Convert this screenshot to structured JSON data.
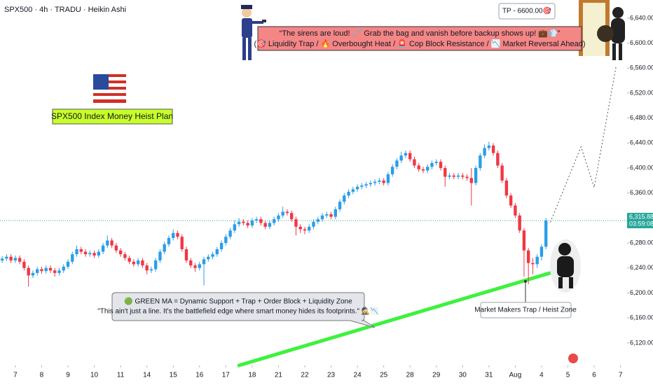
{
  "header": "SPX500 · 4h · TRADU · Heikin Ashi",
  "chart_data": {
    "type": "candlestick",
    "title": "SPX500 Index Money Heist Plan",
    "open": [
      6252,
      6255,
      6258,
      6252,
      6256,
      6250,
      6240,
      6228,
      6232,
      6238,
      6235,
      6240,
      6236,
      6232,
      6236,
      6242,
      6250,
      6262,
      6270,
      6266,
      6262,
      6264,
      6260,
      6266,
      6276,
      6284,
      6276,
      6268,
      6262,
      6256,
      6250,
      6246,
      6252,
      6244,
      6236,
      6238,
      6252,
      6266,
      6278,
      6288,
      6296,
      6290,
      6270,
      6252,
      6244,
      6240,
      6246,
      6254,
      6258,
      6262,
      6270,
      6280,
      6290,
      6300,
      6310,
      6314,
      6312,
      6308,
      6316,
      6318,
      6312,
      6306,
      6312,
      6318,
      6324,
      6330,
      6328,
      6318,
      6306,
      6302,
      6300,
      6306,
      6314,
      6318,
      6324,
      6326,
      6322,
      6334,
      6346,
      6356,
      6362,
      6366,
      6370,
      6372,
      6374,
      6376,
      6378,
      6380,
      6376,
      6390,
      6402,
      6412,
      6420,
      6424,
      6414,
      6404,
      6398,
      6396,
      6402,
      6408,
      6410,
      6400,
      6386,
      6388,
      6386,
      6388,
      6386,
      6384,
      6376,
      6400,
      6420,
      6432,
      6436,
      6424,
      6404,
      6380,
      6356,
      6340,
      6324,
      6300,
      6268,
      6248,
      6246,
      6258,
      6274
    ],
    "high": [
      6259,
      6262,
      6262,
      6260,
      6260,
      6254,
      6244,
      6236,
      6242,
      6242,
      6244,
      6244,
      6240,
      6240,
      6246,
      6254,
      6266,
      6276,
      6274,
      6270,
      6268,
      6268,
      6270,
      6280,
      6292,
      6288,
      6280,
      6272,
      6266,
      6260,
      6254,
      6256,
      6256,
      6248,
      6242,
      6256,
      6270,
      6282,
      6292,
      6302,
      6300,
      6294,
      6274,
      6256,
      6248,
      6250,
      6258,
      6262,
      6266,
      6274,
      6284,
      6294,
      6304,
      6316,
      6320,
      6318,
      6316,
      6320,
      6322,
      6322,
      6316,
      6316,
      6322,
      6328,
      6338,
      6334,
      6332,
      6322,
      6310,
      6306,
      6310,
      6318,
      6322,
      6328,
      6330,
      6330,
      6338,
      6350,
      6360,
      6366,
      6370,
      6374,
      6376,
      6378,
      6380,
      6382,
      6384,
      6384,
      6394,
      6406,
      6416,
      6426,
      6428,
      6428,
      6418,
      6408,
      6402,
      6406,
      6412,
      6414,
      6414,
      6404,
      6392,
      6392,
      6392,
      6392,
      6390,
      6400,
      6404,
      6424,
      6438,
      6442,
      6440,
      6428,
      6408,
      6384,
      6360,
      6344,
      6328,
      6304,
      6272,
      6256,
      6262,
      6278,
      6320
    ],
    "low": [
      6248,
      6251,
      6248,
      6248,
      6246,
      6236,
      6210,
      6224,
      6228,
      6231,
      6231,
      6232,
      6226,
      6228,
      6232,
      6238,
      6246,
      6258,
      6262,
      6258,
      6258,
      6256,
      6256,
      6262,
      6272,
      6272,
      6264,
      6258,
      6252,
      6246,
      6242,
      6242,
      6240,
      6230,
      6232,
      6234,
      6248,
      6262,
      6274,
      6284,
      6286,
      6266,
      6248,
      6240,
      6234,
      6236,
      6212,
      6250,
      6254,
      6258,
      6266,
      6276,
      6286,
      6296,
      6306,
      6308,
      6304,
      6304,
      6312,
      6308,
      6302,
      6302,
      6308,
      6314,
      6320,
      6324,
      6314,
      6292,
      6296,
      6294,
      6296,
      6302,
      6310,
      6314,
      6320,
      6318,
      6318,
      6330,
      6342,
      6352,
      6358,
      6362,
      6366,
      6368,
      6370,
      6372,
      6374,
      6372,
      6372,
      6386,
      6398,
      6408,
      6416,
      6410,
      6400,
      6394,
      6392,
      6392,
      6398,
      6404,
      6396,
      6370,
      6382,
      6382,
      6382,
      6382,
      6380,
      6340,
      6372,
      6396,
      6416,
      6428,
      6420,
      6400,
      6376,
      6352,
      6336,
      6320,
      6296,
      6226,
      6214,
      6230,
      6240,
      6252,
      6270
    ],
    "close": [
      6255,
      6258,
      6252,
      6256,
      6250,
      6240,
      6228,
      6232,
      6238,
      6235,
      6240,
      6236,
      6232,
      6236,
      6242,
      6250,
      6262,
      6270,
      6266,
      6262,
      6264,
      6260,
      6266,
      6276,
      6284,
      6276,
      6268,
      6262,
      6256,
      6250,
      6246,
      6252,
      6244,
      6236,
      6238,
      6252,
      6266,
      6278,
      6288,
      6296,
      6290,
      6270,
      6252,
      6244,
      6240,
      6246,
      6254,
      6258,
      6262,
      6270,
      6280,
      6290,
      6300,
      6310,
      6314,
      6312,
      6308,
      6316,
      6318,
      6312,
      6306,
      6312,
      6318,
      6324,
      6330,
      6328,
      6318,
      6306,
      6302,
      6300,
      6306,
      6314,
      6318,
      6324,
      6326,
      6322,
      6334,
      6346,
      6356,
      6362,
      6366,
      6370,
      6372,
      6374,
      6376,
      6378,
      6380,
      6376,
      6390,
      6402,
      6412,
      6420,
      6424,
      6414,
      6404,
      6398,
      6396,
      6402,
      6408,
      6410,
      6400,
      6386,
      6388,
      6386,
      6388,
      6386,
      6384,
      6376,
      6400,
      6420,
      6432,
      6436,
      6424,
      6404,
      6380,
      6356,
      6340,
      6324,
      6300,
      6268,
      6248,
      6246,
      6258,
      6274,
      6315.88
    ],
    "up_color": "#2a9ee8",
    "down_color": "#f23645",
    "xlim": [
      -0.5,
      142.5
    ],
    "xticks": [
      {
        "value": 3,
        "label": "7"
      },
      {
        "value": 9,
        "label": "8"
      },
      {
        "value": 15,
        "label": "9"
      },
      {
        "value": 21,
        "label": "10"
      },
      {
        "value": 27,
        "label": "11"
      },
      {
        "value": 33,
        "label": "14"
      },
      {
        "value": 39,
        "label": "15"
      },
      {
        "value": 45,
        "label": "16"
      },
      {
        "value": 51,
        "label": "17"
      },
      {
        "value": 57,
        "label": "18"
      },
      {
        "value": 63,
        "label": "21"
      },
      {
        "value": 69,
        "label": "22"
      },
      {
        "value": 75,
        "label": "23"
      },
      {
        "value": 81,
        "label": "24"
      },
      {
        "value": 87,
        "label": "25"
      },
      {
        "value": 93,
        "label": "28"
      },
      {
        "value": 99,
        "label": "29"
      },
      {
        "value": 105,
        "label": "30"
      },
      {
        "value": 111,
        "label": "31"
      },
      {
        "value": 117,
        "label": "Aug"
      },
      {
        "value": 123,
        "label": "4"
      },
      {
        "value": 129,
        "label": "5"
      },
      {
        "value": 135,
        "label": "6"
      },
      {
        "value": 141,
        "label": "7"
      }
    ],
    "ylim": [
      6084,
      6669
    ],
    "yticks": [
      {
        "value": 6120,
        "label": "6,120.00"
      },
      {
        "value": 6160,
        "label": "6,160.00"
      },
      {
        "value": 6200,
        "label": "6,200.00"
      },
      {
        "value": 6240,
        "label": "6,240.00"
      },
      {
        "value": 6280,
        "label": "6,280.00"
      },
      {
        "value": 6360,
        "label": "6,360.00"
      },
      {
        "value": 6400,
        "label": "6,400.00"
      },
      {
        "value": 6440,
        "label": "6,440.00"
      },
      {
        "value": 6480,
        "label": "6,480.00"
      },
      {
        "value": 6520,
        "label": "6,520.00"
      },
      {
        "value": 6560,
        "label": "6,560.00"
      },
      {
        "value": 6600,
        "label": "6,600.00"
      },
      {
        "value": 6640,
        "label": "6,640.00"
      }
    ],
    "last_price": {
      "value": 6315.88,
      "label": "6,315.88",
      "color": "#26a69a"
    },
    "countdown": "03:59:08",
    "lines": [
      {
        "color": "#3df23d",
        "dashed": false,
        "x": [
          54,
          125
        ],
        "values": [
          6084,
          6232
        ]
      },
      {
        "color": "#555555",
        "dashed": true,
        "x": [
          125,
          132,
          135,
          140
        ],
        "values": [
          6313,
          6434,
          6369,
          6563
        ]
      }
    ],
    "annotations": {
      "tp": "TP - 6600.00🎯",
      "warning": [
        "“The sirens are loud! 🧷 Grab the bag and vanish before backup shows up! 💼💨”",
        "(🎯 Liquidity Trap / 🔥 Overbought Heat / 🚨 Cop Block Resistance / 📉 Market Reversal Ahead)"
      ],
      "ma_note": [
        "🟢 GREEN MA = Dynamic Support + Trap + Order Block + Liquidity Zone",
        "\"This ain't just a line. It's the battlefield edge where smart money hides its footprints.\" 🕵️📉"
      ],
      "zone": "Market Makers Trap / Heist Zone"
    }
  }
}
